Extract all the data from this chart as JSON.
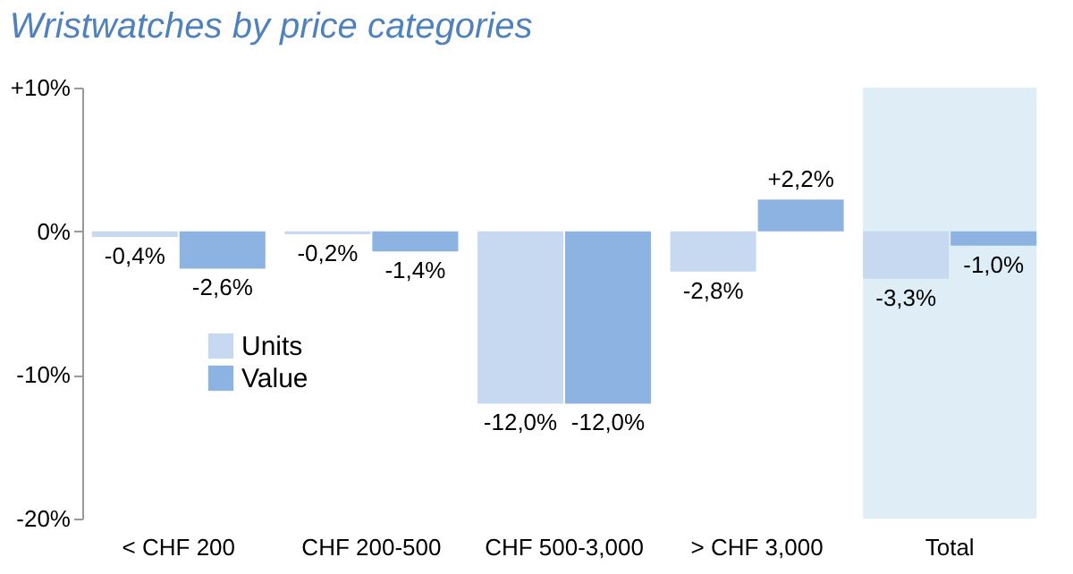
{
  "chart_data": {
    "type": "bar",
    "title": "Wristwatches by price categories",
    "categories": [
      "< CHF 200",
      "CHF 200-500",
      "CHF 500-3,000",
      "> CHF 3,000",
      "Total"
    ],
    "series": [
      {
        "name": "Units",
        "color": "#c6d9f0",
        "values": [
          -0.4,
          -0.2,
          -12.0,
          -2.8,
          -3.3
        ],
        "value_labels": [
          "-0,4%",
          "-0,2%",
          "-12,0%",
          "-2,8%",
          "-3,3%"
        ]
      },
      {
        "name": "Value",
        "color": "#8db3e2",
        "values": [
          -2.6,
          -1.4,
          -12.0,
          2.2,
          -1.0
        ],
        "value_labels": [
          "-2,6%",
          "-1,4%",
          "-12,0%",
          "+2,2%",
          "-1,0%"
        ]
      }
    ],
    "ylim": [
      -20,
      10
    ],
    "yticks": [
      {
        "value": -20,
        "label": "-20%"
      },
      {
        "value": -10,
        "label": "-10%"
      },
      {
        "value": 0,
        "label": "0%"
      },
      {
        "value": 10,
        "label": "+10%"
      }
    ],
    "bands": [
      {
        "axis": "x",
        "from": "Total",
        "to": "Total",
        "color": "#deedf6"
      }
    ],
    "legend": "bottom left",
    "grid": false
  }
}
